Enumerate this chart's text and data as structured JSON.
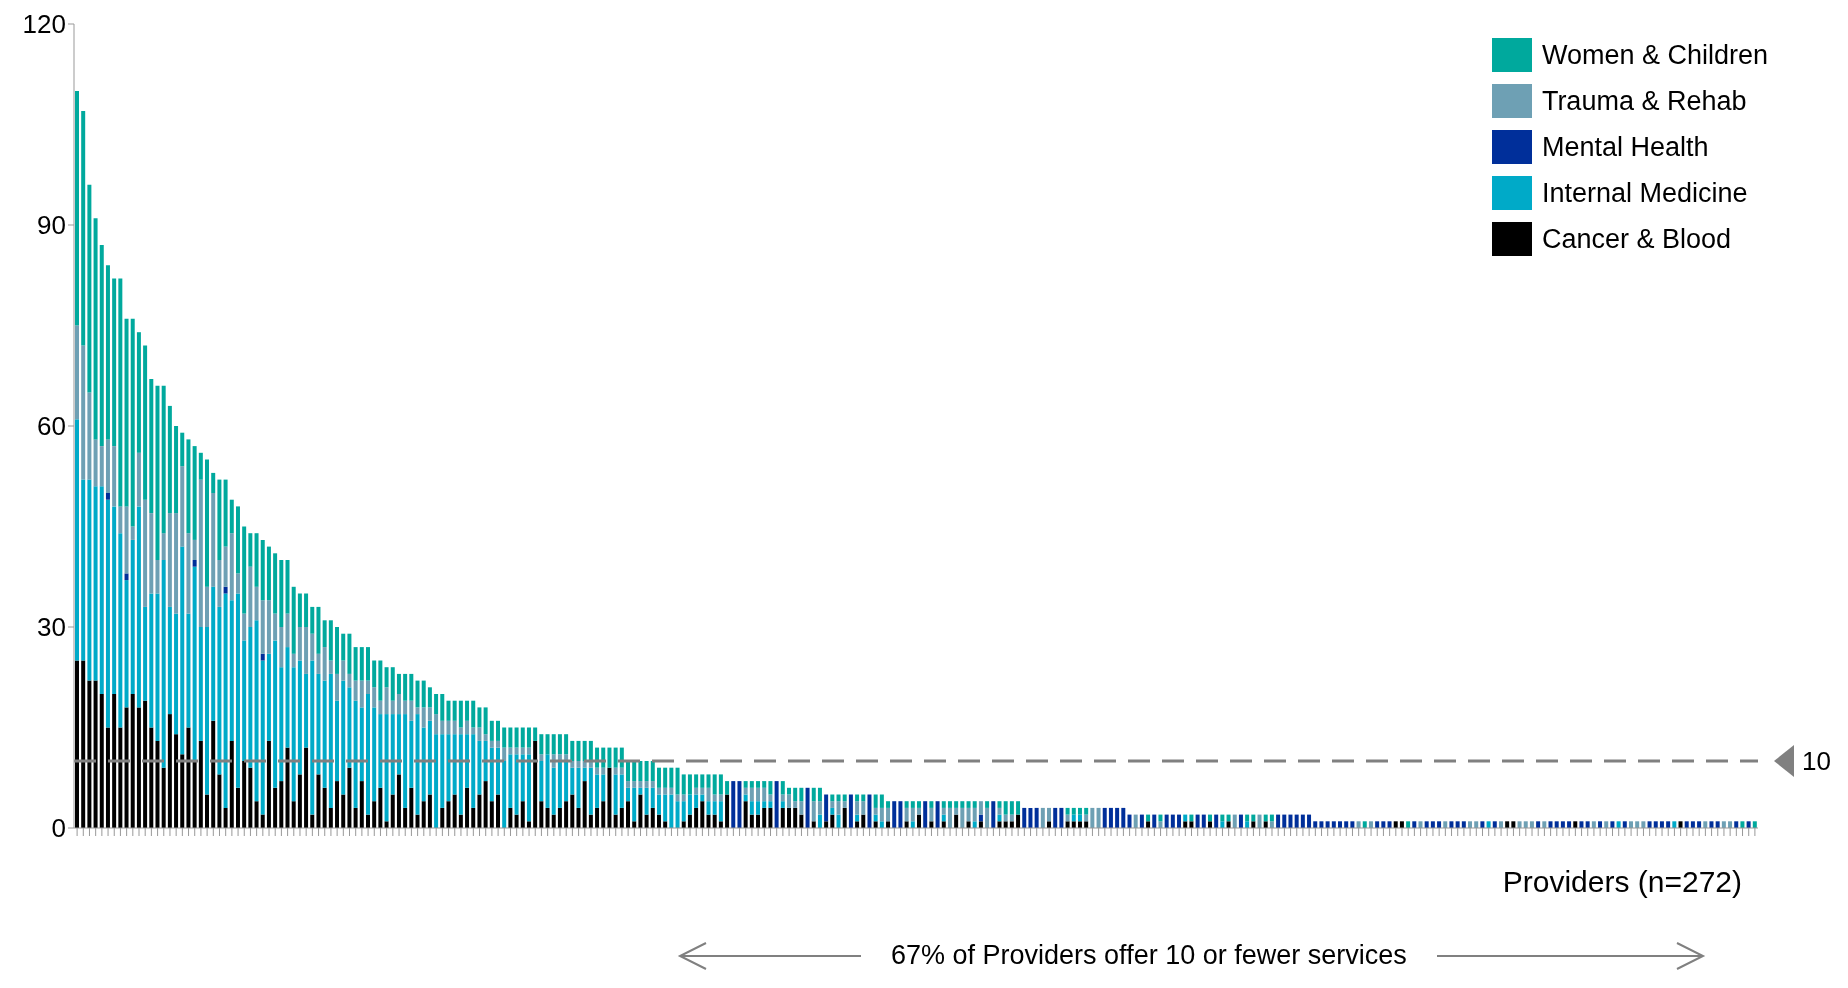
{
  "chart_data": {
    "type": "bar",
    "stacked": true,
    "xlabel": "Providers (n=272)",
    "ylim": [
      0,
      120
    ],
    "yticks": [
      0,
      30,
      60,
      90,
      120
    ],
    "legend": "top right",
    "annotations": [
      "67% of Providers offer 10 or fewer services"
    ],
    "ref_lines": [
      {
        "axis": "y",
        "value": 10,
        "label": "10",
        "color": "#808080",
        "line_style": "dashed"
      }
    ],
    "categories": [
      null,
      null,
      null,
      null,
      null,
      null,
      null,
      null,
      null,
      null,
      null,
      null,
      null,
      null,
      null,
      null,
      null,
      null,
      null,
      null,
      null,
      null,
      null,
      null,
      null,
      null,
      null,
      null,
      null,
      null,
      null,
      null,
      null,
      null,
      null,
      null,
      null,
      null,
      null,
      null,
      null,
      null,
      null,
      null,
      null,
      null,
      null,
      null,
      null,
      null,
      null,
      null,
      null,
      null,
      null,
      null,
      null,
      null,
      null,
      null,
      null,
      null,
      null,
      null,
      null,
      null,
      null,
      null,
      null,
      null,
      null,
      null,
      null,
      null,
      null,
      null,
      null,
      null,
      null,
      null,
      null,
      null,
      null,
      null,
      null,
      null,
      null,
      null,
      null,
      null,
      null,
      null,
      null,
      null,
      null,
      null,
      null,
      null,
      null,
      null,
      null,
      null,
      null,
      null,
      null,
      null,
      null,
      null,
      null,
      null,
      null,
      null,
      null,
      null,
      null,
      null,
      null,
      null,
      null,
      null,
      null,
      null,
      null,
      null,
      null,
      null,
      null,
      null,
      null,
      null,
      null,
      null,
      null,
      null,
      null,
      null,
      null,
      null,
      null,
      null,
      null,
      null,
      null,
      null,
      null,
      null,
      null,
      null,
      null,
      null,
      null,
      null,
      null,
      null,
      null,
      null,
      null,
      null,
      null,
      null,
      null,
      null,
      null,
      null,
      null,
      null,
      null,
      null,
      null,
      null,
      null,
      null,
      null,
      null,
      null,
      null,
      null,
      null,
      null,
      null,
      null,
      null,
      null,
      null,
      null,
      null,
      null,
      null,
      null,
      null,
      null,
      null,
      null,
      null,
      null,
      null,
      null,
      null,
      null,
      null,
      null,
      null,
      null,
      null,
      null,
      null,
      null,
      null,
      null,
      null,
      null,
      null,
      null,
      null,
      null,
      null,
      null,
      null,
      null,
      null,
      null,
      null,
      null,
      null,
      null,
      null,
      null,
      null,
      null,
      null,
      null,
      null,
      null,
      null,
      null,
      null,
      null,
      null,
      null,
      null,
      null,
      null,
      null,
      null,
      null,
      null,
      null,
      null,
      null,
      null,
      null,
      null,
      null,
      null,
      null,
      null,
      null,
      null,
      null,
      null,
      null,
      null,
      null,
      null,
      null,
      null,
      null,
      null,
      null,
      null,
      null,
      null
    ],
    "series": [
      {
        "name": "Cancer & Blood",
        "color": "#000000",
        "values": [
          25,
          25,
          22,
          22,
          20,
          15,
          20,
          15,
          18,
          20,
          18,
          19,
          15,
          13,
          9,
          17,
          14,
          11,
          15,
          10,
          13,
          5,
          16,
          8,
          3,
          13,
          6,
          10,
          9,
          4,
          2,
          13,
          6,
          7,
          12,
          4,
          8,
          12,
          2,
          8,
          6,
          3,
          7,
          5,
          9,
          3,
          7,
          2,
          4,
          6,
          1,
          5,
          8,
          3,
          6,
          2,
          4,
          5,
          0,
          3,
          4,
          5,
          2,
          6,
          3,
          5,
          7,
          4,
          5,
          0,
          3,
          2,
          4,
          1,
          13,
          4,
          3,
          2,
          3,
          4,
          5,
          3,
          7,
          2,
          3,
          4,
          9,
          2,
          3,
          4,
          1,
          5,
          2,
          3,
          2,
          1,
          0,
          0,
          1,
          2,
          3,
          4,
          2,
          2,
          1,
          5,
          0,
          0,
          4,
          2,
          2,
          3,
          3,
          0,
          3,
          3,
          3,
          2,
          0,
          1,
          0,
          1,
          2,
          0,
          3,
          0,
          1,
          2,
          0,
          1,
          0,
          1,
          0,
          0,
          1,
          0,
          2,
          0,
          1,
          0,
          1,
          0,
          2,
          0,
          1,
          0,
          1,
          0,
          0,
          1,
          1,
          1,
          2,
          0,
          0,
          0,
          0,
          1,
          0,
          0,
          1,
          1,
          1,
          1,
          0,
          0,
          0,
          0,
          0,
          0,
          0,
          0,
          0,
          1,
          0,
          0,
          0,
          0,
          0,
          1,
          1,
          0,
          0,
          1,
          0,
          0,
          1,
          0,
          0,
          0,
          1,
          0,
          1,
          0,
          0,
          0,
          0,
          0,
          0,
          0,
          0,
          0,
          0,
          0,
          0,
          0,
          0,
          0,
          0,
          0,
          0,
          0,
          0,
          1,
          1,
          0,
          0,
          0,
          0,
          0,
          0,
          0,
          0,
          0,
          0,
          0,
          0,
          0,
          0,
          0,
          0,
          1,
          1,
          0,
          0,
          0,
          0,
          0,
          0,
          0,
          0,
          0,
          1,
          0,
          0,
          0,
          0,
          0,
          0,
          0,
          0,
          0,
          0,
          0,
          0,
          0,
          0,
          0,
          0,
          1,
          0,
          0,
          0,
          0,
          0,
          0,
          0,
          0,
          0,
          0,
          0,
          0
        ]
      },
      {
        "name": "Internal Medicine",
        "color": "#00aac8",
        "values": [
          36,
          27,
          30,
          29,
          31,
          34,
          28,
          29,
          19,
          23,
          30,
          14,
          20,
          22,
          31,
          16,
          18,
          31,
          17,
          29,
          17,
          25,
          20,
          25,
          32,
          21,
          29,
          18,
          21,
          27,
          23,
          13,
          22,
          17,
          15,
          20,
          17,
          11,
          23,
          15,
          16,
          20,
          12,
          17,
          12,
          16,
          11,
          18,
          14,
          11,
          16,
          12,
          9,
          14,
          10,
          15,
          11,
          11,
          14,
          11,
          10,
          9,
          12,
          8,
          11,
          8,
          6,
          8,
          7,
          10,
          8,
          9,
          7,
          10,
          0,
          6,
          8,
          7,
          7,
          6,
          4,
          6,
          2,
          7,
          5,
          4,
          0,
          6,
          5,
          2,
          5,
          1,
          4,
          3,
          3,
          4,
          5,
          4,
          3,
          3,
          2,
          1,
          2,
          2,
          3,
          0,
          0,
          0,
          1,
          2,
          2,
          1,
          1,
          0,
          1,
          0,
          0,
          0,
          0,
          0,
          2,
          0,
          1,
          2,
          0,
          0,
          1,
          0,
          0,
          1,
          1,
          0,
          0,
          0,
          0,
          1,
          0,
          0,
          0,
          0,
          1,
          0,
          0,
          0,
          0,
          1,
          0,
          0,
          0,
          1,
          0,
          0,
          0,
          0,
          0,
          0,
          0,
          0,
          0,
          0,
          0,
          1,
          1,
          0,
          0,
          0,
          0,
          0,
          0,
          0,
          0,
          0,
          0,
          0,
          0,
          0,
          0,
          0,
          0,
          1,
          0,
          0,
          0,
          0,
          0,
          1,
          0,
          0,
          0,
          1,
          0,
          0,
          0,
          0,
          0,
          0,
          0,
          0,
          0,
          0,
          0,
          0,
          0,
          0,
          0,
          0,
          0,
          0,
          0,
          0,
          0,
          0,
          0,
          0,
          0,
          0,
          0,
          0,
          0,
          0,
          0,
          0,
          0,
          0,
          0,
          0,
          0,
          0,
          1,
          0,
          0,
          0,
          0,
          0,
          0,
          0,
          0,
          0,
          0,
          0,
          0,
          0,
          0,
          0,
          0,
          0,
          0,
          0,
          0,
          1,
          0,
          0,
          0,
          0,
          0,
          0,
          0,
          0,
          1,
          0,
          0,
          0,
          0,
          0,
          0,
          0,
          0,
          0,
          0,
          0,
          0,
          0
        ]
      },
      {
        "name": "Mental Health",
        "color": "#002f9a",
        "values": [
          0,
          0,
          0,
          0,
          0,
          1,
          0,
          0,
          1,
          0,
          0,
          0,
          0,
          0,
          0,
          0,
          0,
          0,
          0,
          1,
          0,
          0,
          0,
          0,
          1,
          0,
          0,
          0,
          0,
          0,
          1,
          0,
          0,
          0,
          0,
          0,
          0,
          0,
          0,
          0,
          0,
          0,
          0,
          0,
          0,
          0,
          0,
          0,
          0,
          0,
          0,
          0,
          0,
          0,
          0,
          0,
          0,
          0,
          0,
          0,
          0,
          0,
          0,
          0,
          0,
          0,
          0,
          0,
          0,
          0,
          0,
          0,
          0,
          0,
          0,
          0,
          0,
          0,
          0,
          0,
          0,
          0,
          0,
          0,
          0,
          0,
          0,
          0,
          0,
          0,
          0,
          0,
          0,
          0,
          0,
          0,
          0,
          0,
          0,
          0,
          0,
          0,
          0,
          0,
          0,
          0,
          7,
          7,
          0,
          0,
          0,
          0,
          0,
          7,
          0,
          0,
          0,
          0,
          6,
          0,
          0,
          4,
          0,
          0,
          0,
          5,
          0,
          0,
          5,
          0,
          0,
          0,
          4,
          4,
          0,
          0,
          0,
          4,
          0,
          4,
          0,
          0,
          0,
          0,
          0,
          0,
          1,
          0,
          4,
          0,
          0,
          0,
          0,
          3,
          3,
          3,
          0,
          0,
          3,
          3,
          0,
          0,
          0,
          0,
          0,
          0,
          3,
          3,
          3,
          3,
          2,
          0,
          2,
          0,
          2,
          0,
          2,
          2,
          2,
          0,
          0,
          2,
          2,
          0,
          2,
          0,
          0,
          0,
          2,
          0,
          0,
          0,
          0,
          0,
          2,
          2,
          2,
          2,
          2,
          2,
          1,
          1,
          1,
          1,
          1,
          1,
          1,
          0,
          0,
          0,
          1,
          1,
          1,
          0,
          0,
          0,
          1,
          0,
          1,
          1,
          1,
          0,
          1,
          1,
          1,
          0,
          0,
          1,
          0,
          1,
          0,
          0,
          0,
          0,
          0,
          0,
          1,
          0,
          1,
          1,
          1,
          1,
          0,
          1,
          1,
          0,
          1,
          0,
          1,
          0,
          1,
          0,
          0,
          0,
          1,
          1,
          1,
          1,
          0,
          0,
          1,
          1,
          1,
          0,
          1,
          1,
          0,
          0,
          1,
          0,
          1,
          0
        ]
      },
      {
        "name": "Trauma & Rehab",
        "color": "#6ea0b4",
        "values": [
          14,
          20,
          13,
          7,
          6,
          8,
          9,
          4,
          10,
          2,
          8,
          16,
          12,
          5,
          4,
          14,
          15,
          12,
          12,
          3,
          22,
          6,
          14,
          7,
          6,
          10,
          3,
          4,
          9,
          5,
          8,
          8,
          4,
          6,
          5,
          2,
          5,
          7,
          4,
          3,
          5,
          2,
          4,
          3,
          2,
          3,
          4,
          2,
          3,
          2,
          4,
          2,
          3,
          2,
          3,
          1,
          3,
          2,
          3,
          2,
          2,
          2,
          1,
          2,
          1,
          2,
          1,
          1,
          1,
          2,
          1,
          1,
          1,
          1,
          0,
          1,
          0,
          2,
          1,
          1,
          1,
          1,
          1,
          1,
          1,
          1,
          0,
          1,
          1,
          1,
          1,
          1,
          1,
          1,
          1,
          1,
          1,
          1,
          1,
          0,
          1,
          1,
          2,
          1,
          1,
          0,
          0,
          0,
          1,
          2,
          2,
          2,
          1,
          0,
          1,
          2,
          1,
          2,
          0,
          3,
          2,
          0,
          1,
          2,
          1,
          0,
          2,
          2,
          0,
          1,
          2,
          2,
          0,
          0,
          2,
          2,
          1,
          0,
          2,
          0,
          1,
          3,
          1,
          3,
          2,
          2,
          2,
          3,
          0,
          1,
          1,
          1,
          0,
          0,
          0,
          0,
          3,
          2,
          0,
          0,
          1,
          0,
          0,
          1,
          3,
          3,
          0,
          0,
          0,
          0,
          0,
          2,
          0,
          0,
          0,
          1,
          0,
          0,
          0,
          0,
          0,
          0,
          0,
          0,
          0,
          0,
          0,
          2,
          0,
          0,
          0,
          2,
          0,
          1,
          0,
          0,
          0,
          0,
          0,
          0,
          0,
          0,
          0,
          0,
          0,
          0,
          0,
          1,
          0,
          1,
          0,
          0,
          0,
          0,
          0,
          0,
          0,
          1,
          0,
          0,
          0,
          1,
          0,
          0,
          0,
          1,
          1,
          0,
          0,
          0,
          1,
          0,
          0,
          1,
          1,
          1,
          0,
          1,
          0,
          0,
          0,
          0,
          0,
          0,
          0,
          1,
          0,
          1,
          0,
          0,
          0,
          1,
          1,
          1,
          0,
          0,
          0,
          0,
          0,
          0,
          0,
          0,
          0,
          1,
          0,
          0,
          1,
          1,
          0,
          0,
          0,
          0
        ]
      },
      {
        "name": "Women & Children",
        "color": "#00a99d",
        "values": [
          35,
          35,
          31,
          33,
          30,
          26,
          25,
          34,
          28,
          31,
          18,
          23,
          20,
          26,
          22,
          16,
          13,
          5,
          14,
          14,
          4,
          19,
          3,
          12,
          10,
          5,
          10,
          13,
          5,
          8,
          9,
          8,
          9,
          10,
          8,
          10,
          5,
          5,
          4,
          7,
          4,
          6,
          7,
          4,
          6,
          5,
          5,
          5,
          4,
          6,
          3,
          5,
          3,
          4,
          4,
          4,
          4,
          3,
          3,
          4,
          3,
          3,
          4,
          3,
          4,
          3,
          4,
          3,
          3,
          3,
          3,
          3,
          3,
          3,
          2,
          3,
          3,
          3,
          3,
          3,
          3,
          3,
          3,
          3,
          3,
          3,
          3,
          3,
          3,
          3,
          3,
          3,
          3,
          3,
          3,
          3,
          3,
          4,
          3,
          3,
          2,
          2,
          2,
          3,
          3,
          2,
          0,
          0,
          1,
          1,
          1,
          1,
          2,
          0,
          2,
          1,
          2,
          2,
          0,
          2,
          2,
          0,
          1,
          1,
          1,
          0,
          1,
          1,
          0,
          2,
          2,
          1,
          0,
          0,
          1,
          1,
          1,
          0,
          1,
          0,
          1,
          1,
          1,
          1,
          1,
          1,
          0,
          1,
          0,
          1,
          2,
          2,
          2,
          0,
          0,
          0,
          0,
          0,
          0,
          0,
          1,
          1,
          1,
          1,
          0,
          0,
          0,
          0,
          0,
          0,
          0,
          0,
          0,
          1,
          0,
          1,
          0,
          0,
          0,
          0,
          1,
          0,
          0,
          1,
          0,
          1,
          1,
          0,
          0,
          1,
          1,
          0,
          1,
          1,
          0,
          0,
          0,
          0,
          0,
          0,
          0,
          0,
          0,
          0,
          0,
          0,
          0,
          0,
          1,
          0,
          0,
          0,
          0,
          0,
          0,
          1,
          0,
          0,
          0,
          0,
          0,
          0,
          0,
          0,
          0,
          0,
          0,
          0,
          0,
          0,
          0,
          0,
          0,
          0,
          0,
          0,
          0,
          0,
          0,
          0,
          0,
          0,
          0,
          0,
          0,
          0,
          0,
          0,
          0,
          0,
          0,
          0,
          0,
          0,
          0,
          0,
          0,
          0,
          0,
          0,
          0,
          0,
          0,
          0,
          0,
          0,
          0,
          0,
          0,
          1,
          0,
          1
        ]
      }
    ]
  }
}
